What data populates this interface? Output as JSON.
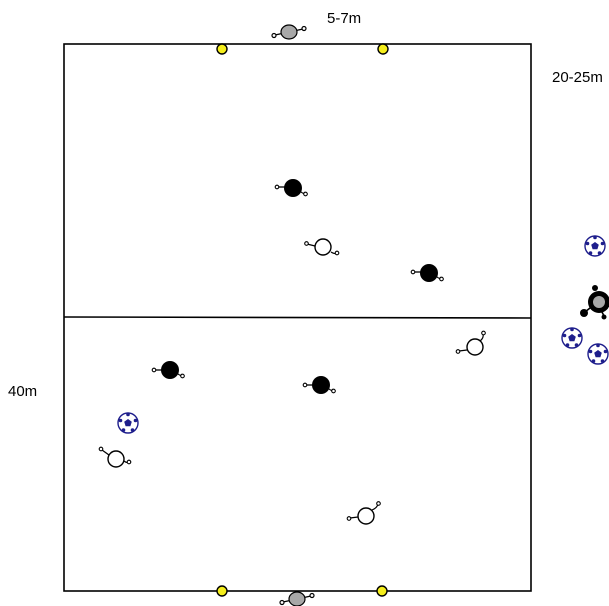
{
  "labels": {
    "goal_width": "5-7m",
    "zone_length": "20-25m",
    "pitch_width": "40m"
  },
  "colors": {
    "cone": "#f5ee1c",
    "goalkeeper": "#a8a8a8",
    "team_dark": "#000000",
    "team_light": "#ffffff",
    "ball": "#1e1e8c"
  },
  "icons": {
    "goal_cone": "yellow-cone-icon",
    "goalkeeper": "goalkeeper-icon",
    "dark_player": "dark-player-icon",
    "light_player": "light-player-icon",
    "ball": "soccer-ball-icon"
  }
}
